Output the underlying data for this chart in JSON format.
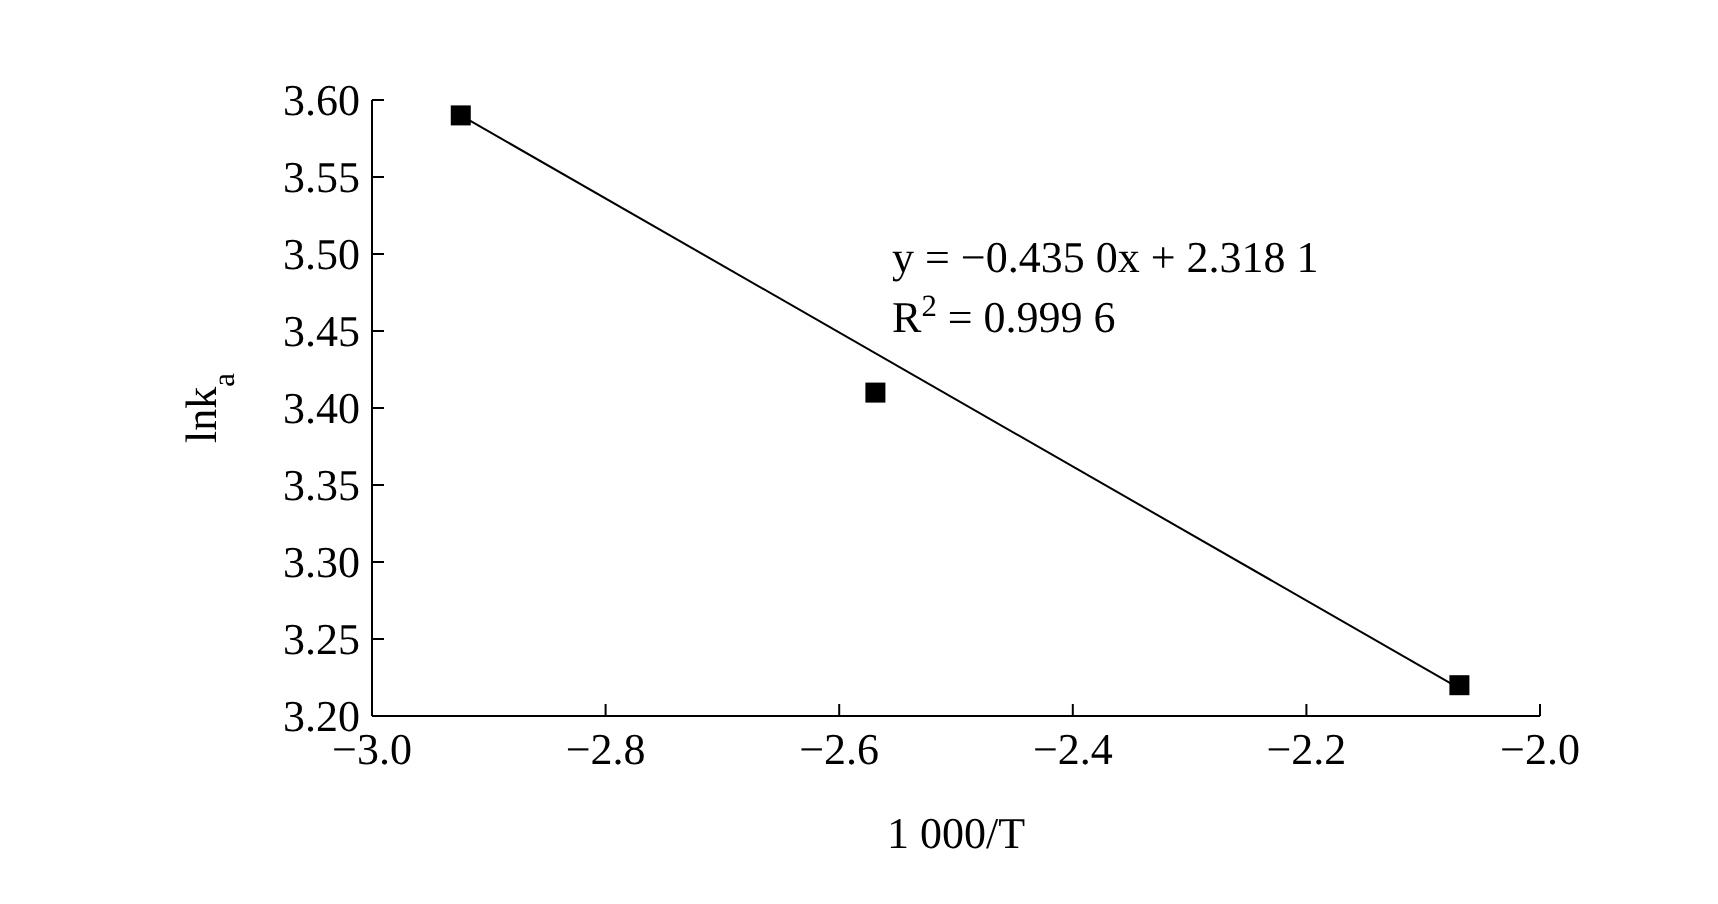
{
  "chart_data": {
    "type": "scatter",
    "xlabel": "1 000/T",
    "ylabel": "lnk$_{a}$",
    "xlim": [
      -3.0,
      -2.0
    ],
    "ylim": [
      3.2,
      3.6
    ],
    "xticks": [
      {
        "value": -3.0,
        "label": "−3.0"
      },
      {
        "value": -2.8,
        "label": "−2.8"
      },
      {
        "value": -2.6,
        "label": "−2.6"
      },
      {
        "value": -2.4,
        "label": "−2.4"
      },
      {
        "value": -2.2,
        "label": "−2.2"
      },
      {
        "value": -2.0,
        "label": "−2.0"
      }
    ],
    "yticks": [
      {
        "value": 3.2,
        "label": "3.20"
      },
      {
        "value": 3.25,
        "label": "3.25"
      },
      {
        "value": 3.3,
        "label": "3.30"
      },
      {
        "value": 3.35,
        "label": "3.35"
      },
      {
        "value": 3.4,
        "label": "3.40"
      },
      {
        "value": 3.45,
        "label": "3.45"
      },
      {
        "value": 3.5,
        "label": "3.50"
      },
      {
        "value": 3.55,
        "label": "3.55"
      },
      {
        "value": 3.6,
        "label": "3.60"
      }
    ],
    "grid": false,
    "series": [
      {
        "type": "line",
        "marker": "none",
        "color": "#000000",
        "x": [
          -2.924,
          -2.069
        ],
        "values": [
          3.59,
          3.218
        ]
      },
      {
        "marker": "square",
        "color": "#000000",
        "x": [
          -2.924,
          -2.569,
          -2.069
        ],
        "values": [
          3.59,
          3.41,
          3.22
        ]
      }
    ],
    "annotations": [
      "y = −0.435 0x + 2.318 1",
      "R$^{2}$ = 0.999 6"
    ]
  }
}
